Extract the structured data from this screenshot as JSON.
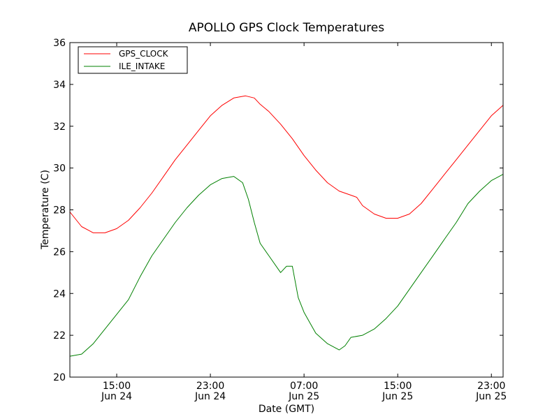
{
  "chart_data": {
    "type": "line",
    "title": "APOLLO GPS Clock Temperatures",
    "xlabel": "Date (GMT)",
    "ylabel": "Temperature (C)",
    "ylim": [
      20,
      36
    ],
    "xlim": [
      "2014-06-24T11:00",
      "2014-06-26T00:00"
    ],
    "grid": false,
    "legend_position": "top-left",
    "x_ticks": [
      {
        "x": "2014-06-24T15:00",
        "time": "15:00",
        "date": "Jun 24"
      },
      {
        "x": "2014-06-24T23:00",
        "time": "23:00",
        "date": "Jun 24"
      },
      {
        "x": "2014-06-25T07:00",
        "time": "07:00",
        "date": "Jun 25"
      },
      {
        "x": "2014-06-25T15:00",
        "time": "15:00",
        "date": "Jun 25"
      },
      {
        "x": "2014-06-25T23:00",
        "time": "23:00",
        "date": "Jun 25"
      }
    ],
    "y_ticks": [
      20,
      22,
      24,
      26,
      28,
      30,
      32,
      34,
      36
    ],
    "series": [
      {
        "name": "GPS_CLOCK",
        "color": "#ff0000",
        "x": [
          "2014-06-24T11:00",
          "2014-06-24T12:00",
          "2014-06-24T13:00",
          "2014-06-24T14:00",
          "2014-06-24T15:00",
          "2014-06-24T16:00",
          "2014-06-24T17:00",
          "2014-06-24T18:00",
          "2014-06-24T19:00",
          "2014-06-24T20:00",
          "2014-06-24T21:00",
          "2014-06-24T22:00",
          "2014-06-24T23:00",
          "2014-06-25T00:00",
          "2014-06-25T01:00",
          "2014-06-25T02:00",
          "2014-06-25T02:45",
          "2014-06-25T03:15",
          "2014-06-25T04:00",
          "2014-06-25T05:00",
          "2014-06-25T06:00",
          "2014-06-25T07:00",
          "2014-06-25T08:00",
          "2014-06-25T09:00",
          "2014-06-25T10:00",
          "2014-06-25T11:00",
          "2014-06-25T11:30",
          "2014-06-25T12:00",
          "2014-06-25T13:00",
          "2014-06-25T14:00",
          "2014-06-25T15:00",
          "2014-06-25T16:00",
          "2014-06-25T17:00",
          "2014-06-25T18:00",
          "2014-06-25T19:00",
          "2014-06-25T20:00",
          "2014-06-25T21:00",
          "2014-06-25T22:00",
          "2014-06-25T23:00",
          "2014-06-26T00:00"
        ],
        "values": [
          27.9,
          27.2,
          26.9,
          26.9,
          27.1,
          27.5,
          28.1,
          28.8,
          29.6,
          30.4,
          31.1,
          31.8,
          32.5,
          33.0,
          33.35,
          33.45,
          33.35,
          33.05,
          32.7,
          32.1,
          31.4,
          30.6,
          29.9,
          29.3,
          28.9,
          28.7,
          28.6,
          28.2,
          27.8,
          27.6,
          27.6,
          27.8,
          28.3,
          29.0,
          29.7,
          30.4,
          31.1,
          31.8,
          32.5,
          33.0
        ]
      },
      {
        "name": "ILE_INTAKE",
        "color": "#008000",
        "x": [
          "2014-06-24T11:00",
          "2014-06-24T12:00",
          "2014-06-24T13:00",
          "2014-06-24T14:00",
          "2014-06-24T15:00",
          "2014-06-24T16:00",
          "2014-06-24T17:00",
          "2014-06-24T18:00",
          "2014-06-24T19:00",
          "2014-06-24T20:00",
          "2014-06-24T21:00",
          "2014-06-24T22:00",
          "2014-06-24T23:00",
          "2014-06-25T00:00",
          "2014-06-25T01:00",
          "2014-06-25T01:45",
          "2014-06-25T02:15",
          "2014-06-25T02:45",
          "2014-06-25T03:15",
          "2014-06-25T04:00",
          "2014-06-25T05:00",
          "2014-06-25T05:30",
          "2014-06-25T06:00",
          "2014-06-25T06:30",
          "2014-06-25T07:00",
          "2014-06-25T07:30",
          "2014-06-25T08:00",
          "2014-06-25T09:00",
          "2014-06-25T10:00",
          "2014-06-25T10:30",
          "2014-06-25T11:00",
          "2014-06-25T12:00",
          "2014-06-25T13:00",
          "2014-06-25T14:00",
          "2014-06-25T15:00",
          "2014-06-25T16:00",
          "2014-06-25T17:00",
          "2014-06-25T18:00",
          "2014-06-25T19:00",
          "2014-06-25T20:00",
          "2014-06-25T21:00",
          "2014-06-25T22:00",
          "2014-06-25T23:00",
          "2014-06-26T00:00"
        ],
        "values": [
          21.0,
          21.1,
          21.6,
          22.3,
          23.0,
          23.7,
          24.8,
          25.8,
          26.6,
          27.4,
          28.1,
          28.7,
          29.2,
          29.5,
          29.6,
          29.3,
          28.5,
          27.4,
          26.4,
          25.8,
          25.0,
          25.3,
          25.3,
          23.8,
          23.1,
          22.6,
          22.1,
          21.6,
          21.3,
          21.5,
          21.9,
          22.0,
          22.3,
          22.8,
          23.4,
          24.2,
          25.0,
          25.8,
          26.6,
          27.4,
          28.3,
          28.9,
          29.4,
          29.7
        ]
      }
    ]
  }
}
